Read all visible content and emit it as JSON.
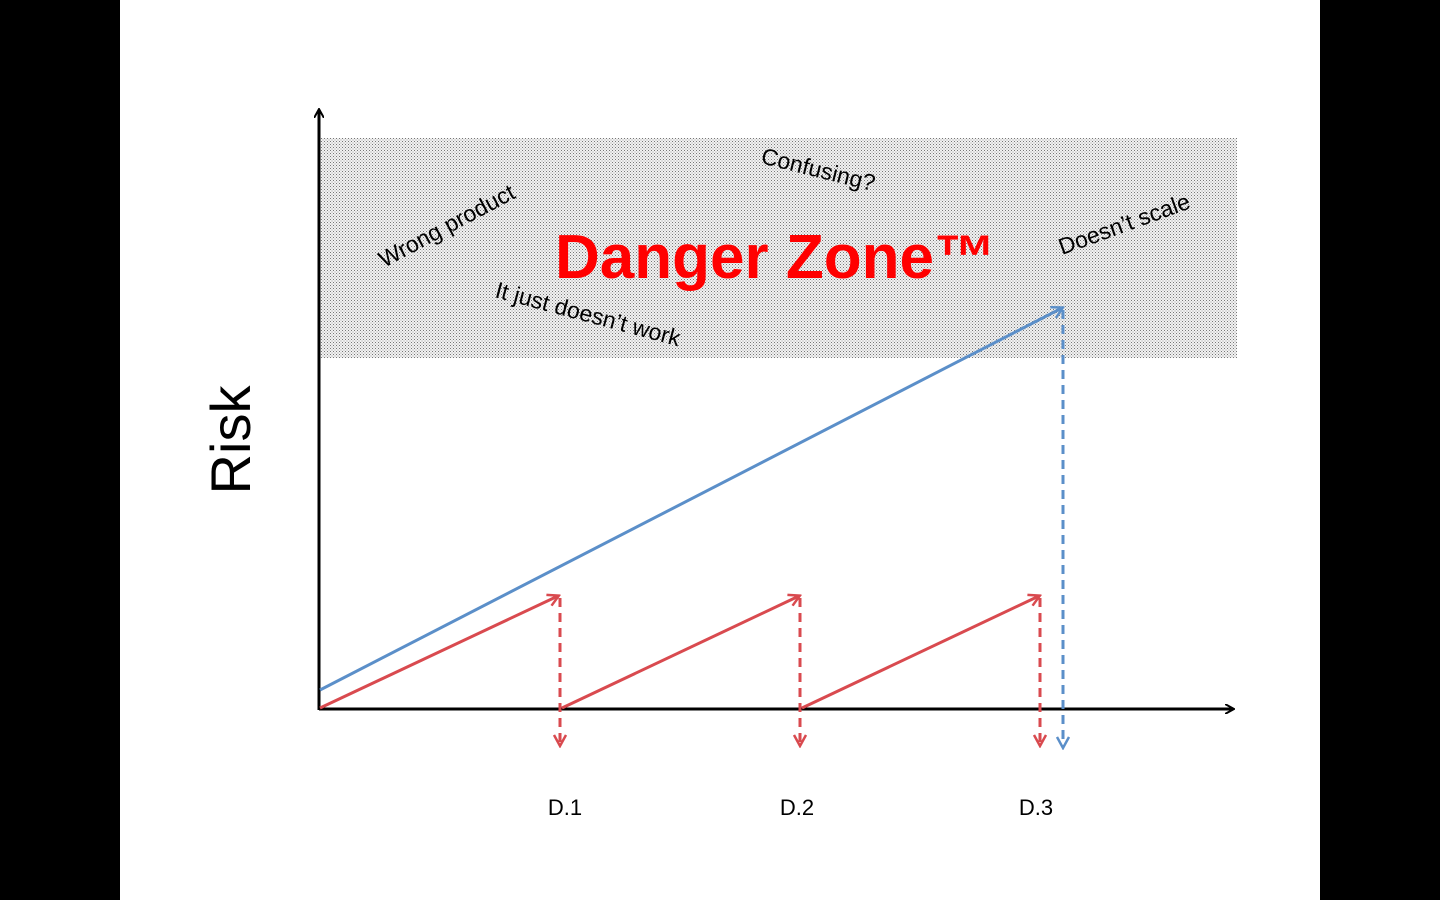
{
  "y_label": "Risk",
  "zone_label": "Danger Zone™",
  "annotations": {
    "wrong_product": "Wrong product",
    "confusing": "Confusing?",
    "doesnt_work": "It just doesn’t work",
    "doesnt_scale": "Doesn’t scale"
  },
  "deliveries": [
    "D.1",
    "D.2",
    "D.3"
  ],
  "colors": {
    "blue": "#5b8fc9",
    "red": "#d94a4f",
    "danger_text": "#ff0000",
    "zone_fill": "#e8e8e8"
  }
}
